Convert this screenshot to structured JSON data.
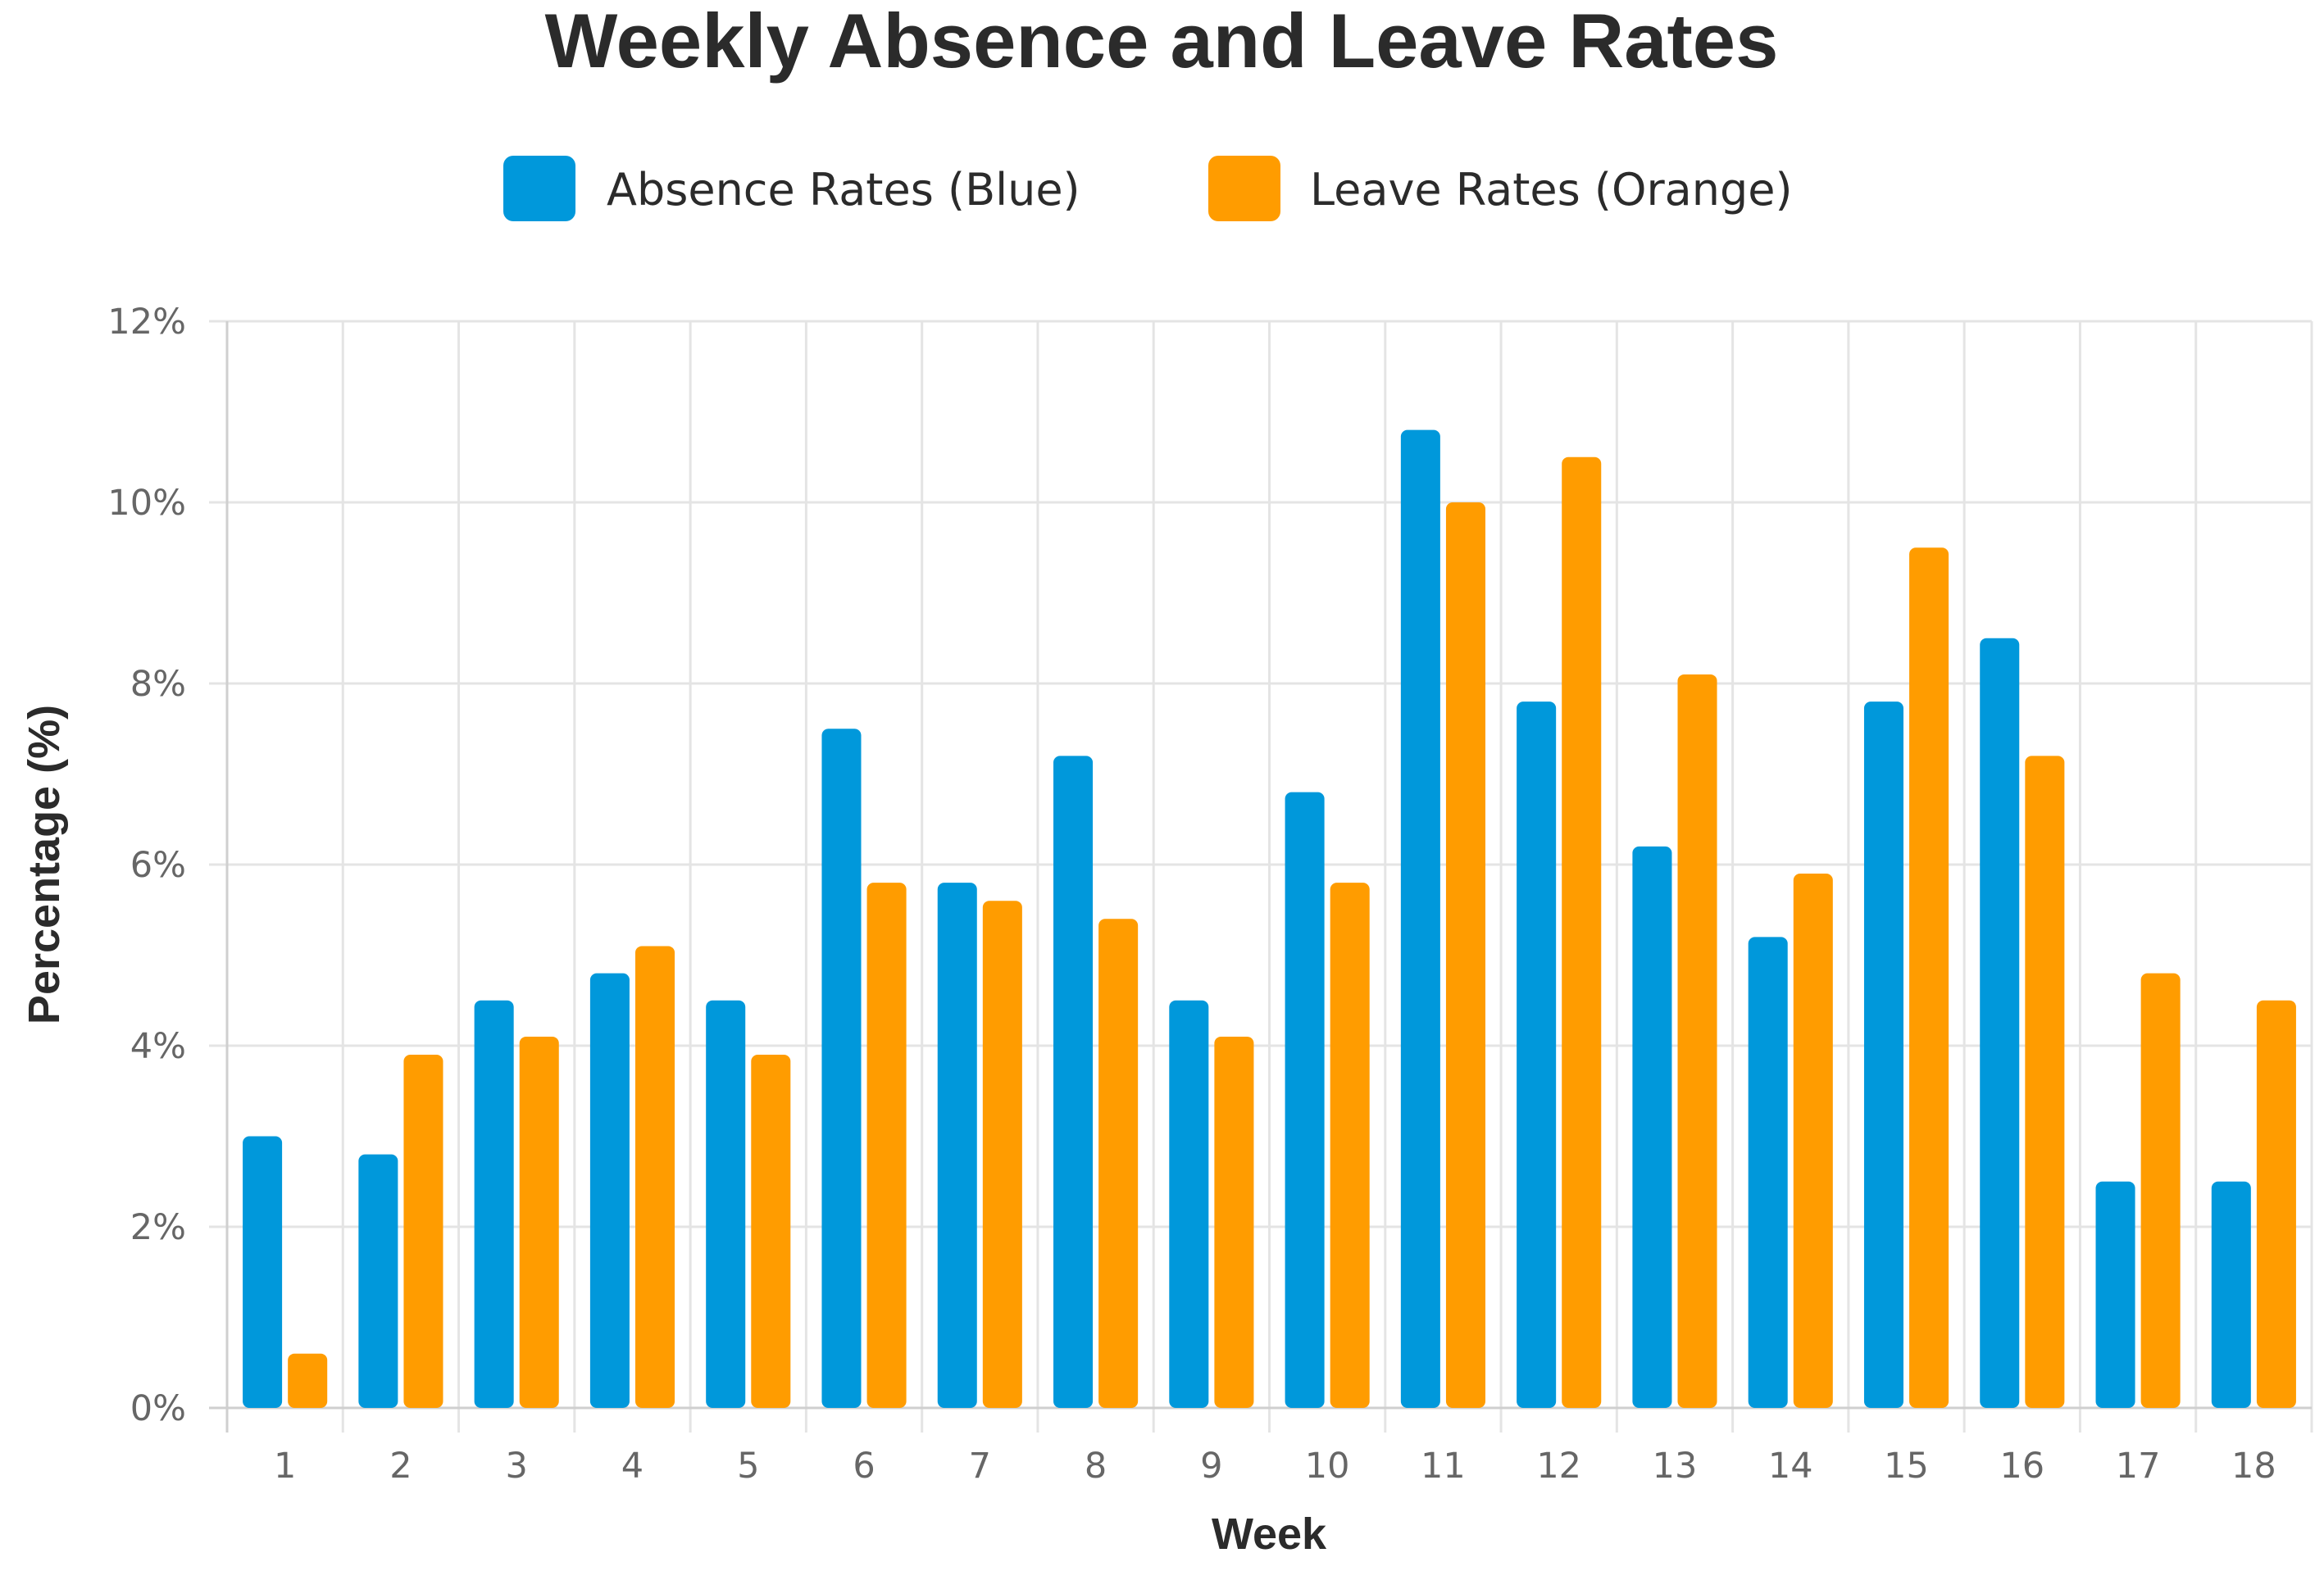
{
  "chart_data": {
    "type": "bar",
    "title": "Weekly Absence and Leave Rates",
    "xlabel": "Week",
    "ylabel": "Percentage (%)",
    "ylim": [
      0,
      12
    ],
    "y_ticks": [
      "0%",
      "2%",
      "4%",
      "6%",
      "8%",
      "10%",
      "12%"
    ],
    "y_tick_values": [
      0,
      2,
      4,
      6,
      8,
      10,
      12
    ],
    "grid": true,
    "legend_position": "top-center",
    "categories": [
      "1",
      "2",
      "3",
      "4",
      "5",
      "6",
      "7",
      "8",
      "9",
      "10",
      "11",
      "12",
      "13",
      "14",
      "15",
      "16",
      "17",
      "18"
    ],
    "series": [
      {
        "name": "Absence Rates (Blue)",
        "color": "#0098db",
        "values": [
          3.0,
          2.8,
          4.5,
          4.8,
          4.5,
          7.5,
          5.8,
          7.2,
          4.5,
          6.8,
          10.8,
          7.8,
          6.2,
          5.2,
          7.8,
          8.5,
          2.5,
          2.5
        ]
      },
      {
        "name": "Leave Rates (Orange)",
        "color": "#ff9c00",
        "values": [
          0.6,
          3.9,
          4.1,
          5.1,
          3.9,
          5.8,
          5.6,
          5.4,
          4.1,
          5.8,
          10.0,
          10.5,
          8.1,
          5.9,
          9.5,
          7.2,
          4.8,
          4.5
        ]
      }
    ]
  }
}
